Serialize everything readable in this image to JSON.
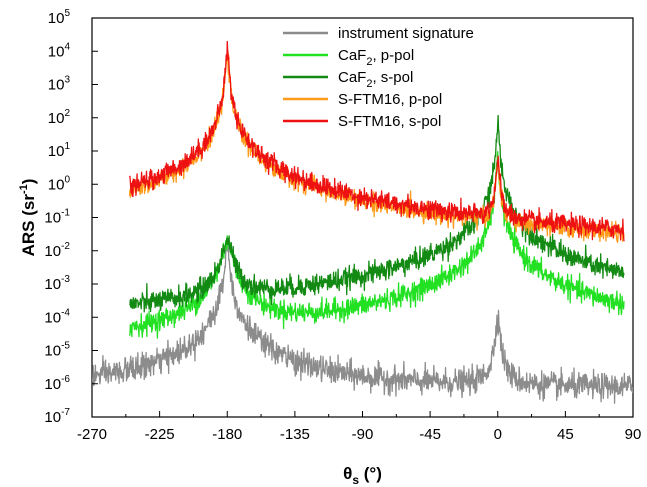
{
  "chart_data": {
    "type": "line",
    "xlabel": "θ",
    "xlabel_sub": "s",
    "xlabel_unit": " (°)",
    "ylabel": "ARS (sr",
    "ylabel_sup": "-1",
    "ylabel_close": ")",
    "y_scale": "log",
    "xlim": [
      -270,
      90
    ],
    "ylim": [
      1e-07,
      100000.0
    ],
    "x_ticks": [
      -270,
      -225,
      -180,
      -135,
      -90,
      -45,
      0,
      45,
      90
    ],
    "x_tick_labels": [
      "-270",
      "-225",
      "-180",
      "-135",
      "-90",
      "-45",
      "0",
      "45",
      "90"
    ],
    "y_ticks": [
      -7,
      -6,
      -5,
      -4,
      -3,
      -2,
      -1,
      0,
      1,
      2,
      3,
      4,
      5
    ],
    "y_tick_base": "10",
    "y_tick_exponents": [
      "-7",
      "-6",
      "-5",
      "-4",
      "-3",
      "-2",
      "-1",
      "0",
      "1",
      "2",
      "3",
      "4",
      "5"
    ],
    "grid": false,
    "legend_position": "top-right",
    "legend": [
      {
        "name": "instrument signature",
        "color": "#8c8c8c"
      },
      {
        "name": "CaF",
        "sub": "2",
        "suffix": ", p-pol",
        "color": "#22e022"
      },
      {
        "name": "CaF",
        "sub": "2",
        "suffix": ", s-pol",
        "color": "#138a13"
      },
      {
        "name": "S-FTM16, p-pol",
        "color": "#ff9b1a"
      },
      {
        "name": "S-FTM16, s-pol",
        "color": "#ee1111"
      }
    ],
    "series": [
      {
        "name": "instrument signature",
        "color": "#8c8c8c",
        "x_range": [
          -270,
          90
        ],
        "floor": 7e-07,
        "peaks": [
          {
            "x": -180,
            "peak": 0.02,
            "width": 0.8,
            "sigma": 0.45
          },
          {
            "x": 0,
            "peak": 0.00012,
            "width": 0.9,
            "sigma": 0.45
          }
        ],
        "noise": 0.55
      },
      {
        "name": "CaF2, p-pol",
        "color": "#22e022",
        "x_range": [
          -245,
          84
        ],
        "floor": 1e-06,
        "peaks": [
          {
            "x": -180,
            "peak": 0.02,
            "width": 2.6,
            "sigma": 0.6
          },
          {
            "x": 0,
            "peak": 5,
            "width": 0.75,
            "sigma": 0.45
          }
        ],
        "noise": 0.45
      },
      {
        "name": "CaF2, s-pol",
        "color": "#138a13",
        "x_range": [
          -245,
          84
        ],
        "floor": 1e-06,
        "peaks": [
          {
            "x": -180,
            "peak": 0.02,
            "width": 2.6,
            "sigma": 0.6
          },
          {
            "x": 0,
            "peak": 80,
            "width": 0.55,
            "sigma": 0.4
          }
        ],
        "noise": 0.45
      },
      {
        "name": "S-FTM16, p-pol",
        "color": "#ff9b1a",
        "x_range": [
          -245,
          84
        ],
        "floor": 1e-06,
        "peaks": [
          {
            "x": -180,
            "peak": 10000.0,
            "width": 0.65,
            "sigma": 0.4
          },
          {
            "x": 0,
            "peak": 4,
            "width": 0.8,
            "sigma": 0.45
          }
        ],
        "noise": 0.38
      },
      {
        "name": "S-FTM16, s-pol",
        "color": "#ee1111",
        "x_range": [
          -245,
          84
        ],
        "floor": 1e-06,
        "peaks": [
          {
            "x": -180,
            "peak": 13000.0,
            "width": 0.65,
            "sigma": 0.4
          },
          {
            "x": 0,
            "peak": 5,
            "width": 0.8,
            "sigma": 0.45
          }
        ],
        "noise": 0.42
      }
    ]
  }
}
